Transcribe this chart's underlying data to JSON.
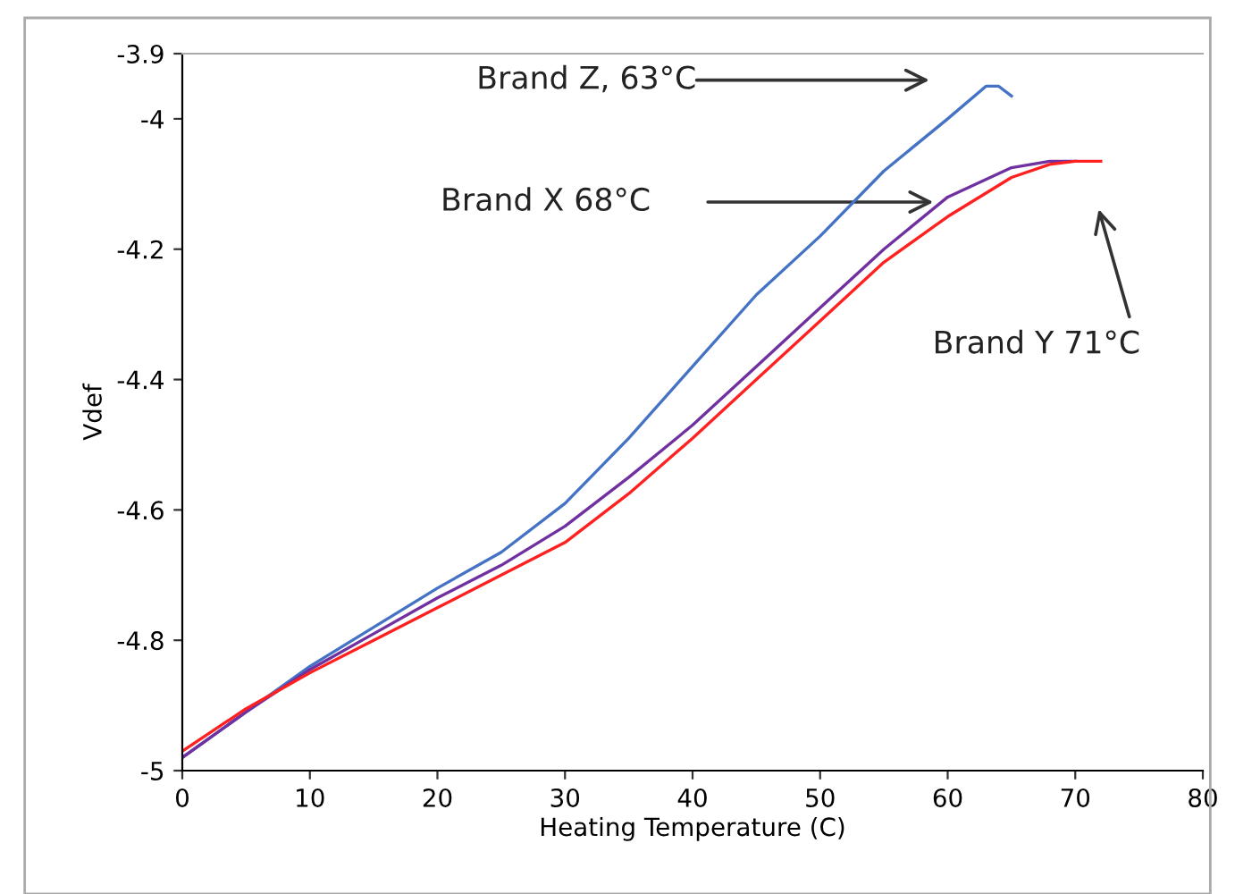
{
  "chart_data": {
    "type": "line",
    "xlabel": "Heating Temperature (C)",
    "ylabel": "Vdef",
    "xlim": [
      0,
      80
    ],
    "xticks": [
      0,
      10,
      20,
      30,
      40,
      50,
      60,
      70,
      80
    ],
    "ylim": [
      -5,
      -3.9
    ],
    "yticks": [
      -5,
      -4.8,
      -4.6,
      -4.4,
      -4.2,
      -4,
      -3.9
    ],
    "grid": false,
    "legend": false,
    "marker": "none",
    "line_style": "solid",
    "series": [
      {
        "color": "#4472c4",
        "x": [
          0,
          5,
          10,
          15,
          20,
          25,
          30,
          35,
          40,
          45,
          50,
          55,
          60,
          63,
          64,
          65
        ],
        "values": [
          -4.98,
          -4.91,
          -4.84,
          -4.78,
          -4.72,
          -4.665,
          -4.59,
          -4.49,
          -4.38,
          -4.27,
          -4.18,
          -4.08,
          -4.0,
          -3.95,
          -3.95,
          -3.965
        ]
      },
      {
        "color": "#7030a0",
        "x": [
          0,
          5,
          10,
          15,
          20,
          25,
          30,
          35,
          40,
          45,
          50,
          55,
          60,
          65,
          68,
          70
        ],
        "values": [
          -4.98,
          -4.91,
          -4.845,
          -4.79,
          -4.735,
          -4.685,
          -4.625,
          -4.55,
          -4.47,
          -4.38,
          -4.29,
          -4.2,
          -4.12,
          -4.075,
          -4.065,
          -4.065
        ]
      },
      {
        "color": "#ff2020",
        "x": [
          0,
          5,
          10,
          15,
          20,
          25,
          30,
          35,
          40,
          45,
          50,
          55,
          60,
          65,
          68,
          70,
          72
        ],
        "values": [
          -4.97,
          -4.905,
          -4.85,
          -4.8,
          -4.75,
          -4.7,
          -4.65,
          -4.575,
          -4.49,
          -4.4,
          -4.31,
          -4.22,
          -4.15,
          -4.09,
          -4.07,
          -4.065,
          -4.065
        ]
      }
    ],
    "annotations": [
      "Brand Z, 63°C",
      "Brand X 68°C",
      "Brand Y 71°C"
    ]
  }
}
